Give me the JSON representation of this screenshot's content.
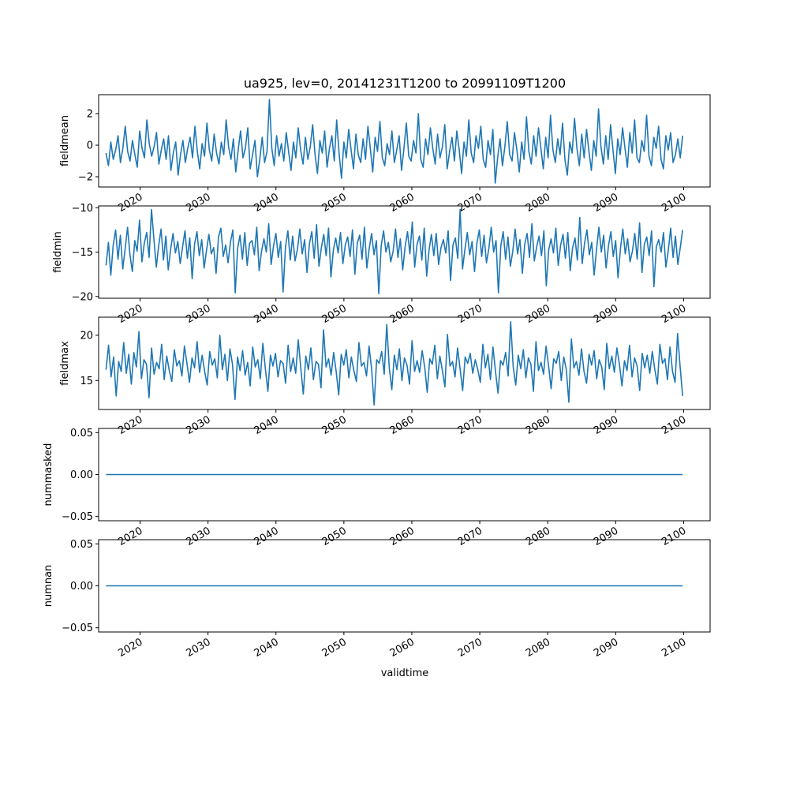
{
  "figure": {
    "title": "ua925, lev=0, 20141231T1200 to 20991109T1200",
    "xlabel": "validtime"
  },
  "colors": {
    "line": "#1f77b4",
    "axes": "#000000",
    "background": "#ffffff"
  },
  "chart_data": [
    {
      "type": "line",
      "title": "ua925, lev=0, 20141231T1200 to 20991109T1200",
      "ylabel": "fieldmean",
      "xlim": [
        2013.9,
        2103.9
      ],
      "ylim": [
        -2.65,
        3.2
      ],
      "yticks": [
        -2,
        0,
        2
      ],
      "ytick_labels": [
        "−2",
        "0",
        "2"
      ],
      "xticks": [
        2020,
        2030,
        2040,
        2050,
        2060,
        2070,
        2080,
        2090,
        2100
      ],
      "xtick_labels": [
        "2020",
        "2030",
        "2040",
        "2050",
        "2060",
        "2070",
        "2080",
        "2090",
        "2100"
      ],
      "series": [
        {
          "x_start": 2014.99,
          "x_end": 2099.86,
          "values": [
            -0.5,
            -1.3,
            0.2,
            -0.9,
            -0.3,
            0.6,
            -1.1,
            -0.2,
            1.2,
            -0.4,
            -1.0,
            0.3,
            -0.6,
            -1.4,
            0.9,
            -0.2,
            -0.8,
            1.6,
            0.1,
            -0.7,
            -0.1,
            0.8,
            -1.2,
            -0.3,
            0.4,
            -0.9,
            0.6,
            -1.6,
            -0.5,
            0.2,
            -1.9,
            -0.6,
            0.3,
            -1.1,
            -0.2,
            0.5,
            -0.8,
            1.2,
            -0.4,
            -1.5,
            0.1,
            -0.7,
            1.4,
            -0.3,
            -1.0,
            0.7,
            -0.5,
            -1.2,
            0.2,
            -0.6,
            1.6,
            -0.1,
            -0.9,
            0.4,
            -1.7,
            -0.3,
            0.9,
            -0.8,
            -0.2,
            1.1,
            -1.5,
            -0.6,
            0.3,
            -2.0,
            -0.9,
            0.5,
            -1.1,
            -0.4,
            2.9,
            -0.2,
            -1.3,
            0.6,
            -0.7,
            0.1,
            -1.0,
            0.8,
            -0.4,
            -1.6,
            0.2,
            -0.8,
            1.1,
            -0.3,
            -1.2,
            0.5,
            -0.9,
            -0.1,
            1.3,
            -0.6,
            -1.8,
            0.3,
            -0.5,
            0.9,
            -1.4,
            -0.2,
            0.6,
            -1.0,
            1.6,
            -0.5,
            -2.1,
            0.2,
            -0.8,
            1.0,
            -0.3,
            -1.5,
            0.7,
            -0.6,
            -1.1,
            0.4,
            -0.9,
            1.2,
            -0.2,
            -1.7,
            0.5,
            -0.4,
            1.5,
            -0.8,
            -1.3,
            0.1,
            -0.6,
            0.9,
            -1.1,
            -0.3,
            0.6,
            -1.6,
            -0.2,
            1.4,
            -0.7,
            -1.0,
            0.3,
            -0.5,
            2.0,
            -0.9,
            -1.4,
            0.4,
            -0.6,
            1.1,
            -0.2,
            -1.2,
            0.7,
            -0.8,
            -0.1,
            1.3,
            -1.5,
            -0.4,
            0.5,
            -1.0,
            0.9,
            -0.3,
            -1.8,
            0.2,
            -0.7,
            1.6,
            -0.5,
            -1.1,
            0.6,
            -0.2,
            1.2,
            -0.9,
            -1.4,
            0.3,
            -0.6,
            1.0,
            -2.4,
            -0.8,
            0.4,
            -1.3,
            -0.1,
            1.5,
            -0.6,
            -1.0,
            0.8,
            -0.3,
            -1.7,
            0.2,
            -0.9,
            1.8,
            -0.4,
            -1.2,
            0.6,
            -0.7,
            1.1,
            -0.2,
            -1.5,
            0.5,
            -0.8,
            1.9,
            -0.3,
            -1.1,
            0.4,
            -0.6,
            1.4,
            -0.9,
            -1.9,
            0.2,
            -0.5,
            1.7,
            -0.2,
            -1.3,
            0.7,
            -0.8,
            1.0,
            -0.4,
            -1.6,
            0.3,
            -0.7,
            2.3,
            -0.1,
            -1.2,
            0.6,
            -0.9,
            1.3,
            -0.3,
            -1.8,
            0.4,
            -0.6,
            1.1,
            -0.2,
            -1.4,
            0.8,
            -0.5,
            1.6,
            -0.8,
            -1.1,
            0.3,
            -0.4,
            1.9,
            -0.7,
            -1.3,
            0.5,
            -0.2,
            1.2,
            -0.9,
            -1.5,
            0.6,
            -0.3,
            0.8,
            -1.1,
            -0.6,
            0.4,
            -0.8,
            0.6
          ]
        }
      ]
    },
    {
      "type": "line",
      "ylabel": "fieldmin",
      "xlim": [
        2013.9,
        2103.9
      ],
      "ylim": [
        -20.2,
        -9.8
      ],
      "yticks": [
        -20,
        -15,
        -10
      ],
      "ytick_labels": [
        "−20",
        "−15",
        "−10"
      ],
      "xticks": [
        2020,
        2030,
        2040,
        2050,
        2060,
        2070,
        2080,
        2090,
        2100
      ],
      "xtick_labels": [
        "2020",
        "2030",
        "2040",
        "2050",
        "2060",
        "2070",
        "2080",
        "2090",
        "2100"
      ],
      "series": [
        {
          "x_start": 2014.99,
          "x_end": 2099.86,
          "values": [
            -16.5,
            -13.9,
            -17.6,
            -14.2,
            -12.5,
            -15.8,
            -13.1,
            -16.9,
            -14.6,
            -12.2,
            -15.3,
            -17.2,
            -13.7,
            -14.9,
            -11.4,
            -16.1,
            -14.0,
            -12.8,
            -15.6,
            -10.2,
            -13.5,
            -16.7,
            -14.3,
            -12.4,
            -15.9,
            -13.2,
            -17.0,
            -14.7,
            -12.9,
            -15.1,
            -13.8,
            -16.3,
            -14.4,
            -12.6,
            -15.7,
            -13.4,
            -18.0,
            -14.1,
            -12.7,
            -15.4,
            -13.6,
            -16.8,
            -14.8,
            -13.0,
            -15.2,
            -14.5,
            -17.4,
            -13.3,
            -12.3,
            -15.5,
            -14.2,
            -16.2,
            -13.9,
            -12.5,
            -19.6,
            -14.6,
            -13.1,
            -15.8,
            -12.8,
            -16.5,
            -14.0,
            -13.7,
            -15.3,
            -12.2,
            -17.1,
            -14.9,
            -13.5,
            -15.0,
            -11.8,
            -16.4,
            -14.3,
            -12.9,
            -15.6,
            -13.8,
            -19.5,
            -14.4,
            -12.6,
            -15.9,
            -13.2,
            -16.0,
            -14.7,
            -12.4,
            -15.2,
            -13.6,
            -17.3,
            -14.1,
            -12.7,
            -15.7,
            -11.9,
            -16.6,
            -14.5,
            -13.0,
            -15.4,
            -12.3,
            -17.8,
            -14.8,
            -13.4,
            -15.1,
            -12.8,
            -16.3,
            -14.2,
            -13.3,
            -15.5,
            -12.5,
            -17.5,
            -14.0,
            -13.1,
            -15.8,
            -12.2,
            -16.8,
            -14.6,
            -12.9,
            -15.3,
            -13.7,
            -19.7,
            -14.3,
            -12.6,
            -15.0,
            -13.9,
            -16.1,
            -14.9,
            -12.4,
            -15.6,
            -13.5,
            -17.0,
            -14.4,
            -12.7,
            -15.2,
            -11.6,
            -16.7,
            -14.1,
            -13.2,
            -15.9,
            -12.3,
            -17.7,
            -14.8,
            -13.0,
            -15.4,
            -12.9,
            -16.4,
            -14.5,
            -13.6,
            -15.1,
            -12.6,
            -18.2,
            -14.2,
            -13.4,
            -15.7,
            -10.2,
            -16.9,
            -14.7,
            -12.8,
            -15.3,
            -13.8,
            -17.2,
            -14.0,
            -12.5,
            -15.5,
            -13.1,
            -16.2,
            -14.6,
            -12.2,
            -15.0,
            -13.7,
            -19.6,
            -14.3,
            -12.7,
            -15.8,
            -13.3,
            -16.6,
            -14.9,
            -12.4,
            -15.2,
            -13.6,
            -17.4,
            -14.1,
            -12.9,
            -15.6,
            -11.8,
            -16.0,
            -14.4,
            -13.2,
            -15.4,
            -12.6,
            -18.8,
            -14.8,
            -13.5,
            -15.1,
            -12.3,
            -16.5,
            -14.2,
            -13.0,
            -15.7,
            -12.8,
            -17.1,
            -14.5,
            -13.4,
            -15.9,
            -11.1,
            -16.3,
            -14.0,
            -12.5,
            -15.3,
            -13.9,
            -17.6,
            -14.7,
            -12.2,
            -15.0,
            -13.1,
            -16.8,
            -14.3,
            -12.7,
            -15.5,
            -13.7,
            -17.9,
            -14.6,
            -12.4,
            -15.2,
            -13.5,
            -16.1,
            -14.9,
            -12.9,
            -15.8,
            -11.7,
            -17.3,
            -14.1,
            -13.3,
            -15.4,
            -12.6,
            -18.9,
            -14.4,
            -13.6,
            -15.0,
            -12.8,
            -16.7,
            -14.8,
            -12.3,
            -15.6,
            -13.2,
            -16.4,
            -14.5,
            -12.5
          ]
        }
      ]
    },
    {
      "type": "line",
      "ylabel": "fieldmax",
      "xlim": [
        2013.9,
        2103.9
      ],
      "ylim": [
        11.8,
        22.0
      ],
      "yticks": [
        15,
        20
      ],
      "ytick_labels": [
        "15",
        "20"
      ],
      "xticks": [
        2020,
        2030,
        2040,
        2050,
        2060,
        2070,
        2080,
        2090,
        2100
      ],
      "xtick_labels": [
        "2020",
        "2030",
        "2040",
        "2050",
        "2060",
        "2070",
        "2080",
        "2090",
        "2100"
      ],
      "series": [
        {
          "x_start": 2014.99,
          "x_end": 2099.86,
          "values": [
            16.2,
            18.9,
            15.4,
            17.6,
            13.3,
            17.1,
            16.0,
            19.2,
            15.8,
            17.9,
            14.6,
            18.1,
            16.5,
            20.4,
            15.2,
            17.3,
            16.8,
            13.1,
            18.6,
            15.7,
            17.0,
            16.3,
            19.0,
            15.1,
            17.7,
            16.1,
            14.9,
            18.4,
            16.6,
            17.2,
            15.5,
            18.8,
            16.9,
            14.8,
            17.5,
            16.4,
            19.3,
            15.9,
            17.8,
            16.0,
            14.5,
            18.2,
            16.7,
            17.4,
            15.3,
            20.0,
            16.2,
            17.9,
            15.0,
            18.5,
            16.8,
            12.9,
            17.6,
            16.1,
            18.3,
            15.6,
            17.0,
            14.4,
            18.7,
            16.5,
            17.3,
            15.2,
            19.1,
            16.3,
            13.8,
            17.8,
            16.6,
            18.0,
            15.4,
            17.2,
            16.9,
            14.7,
            18.9,
            16.0,
            17.5,
            15.8,
            19.5,
            16.4,
            13.5,
            17.7,
            16.2,
            18.6,
            15.1,
            17.1,
            16.8,
            14.2,
            20.6,
            16.5,
            17.4,
            15.6,
            18.1,
            16.0,
            13.4,
            17.9,
            16.7,
            18.4,
            15.3,
            17.6,
            16.1,
            14.9,
            19.2,
            16.6,
            17.0,
            15.5,
            18.8,
            16.3,
            12.3,
            17.3,
            16.9,
            18.2,
            15.7,
            21.2,
            16.4,
            14.0,
            17.8,
            16.2,
            18.5,
            15.0,
            17.5,
            16.7,
            14.6,
            19.4,
            16.0,
            17.2,
            15.9,
            18.3,
            16.5,
            13.7,
            17.4,
            16.8,
            18.9,
            15.2,
            17.7,
            16.1,
            14.3,
            20.1,
            16.6,
            17.1,
            15.4,
            18.6,
            16.3,
            13.9,
            17.6,
            16.9,
            18.0,
            15.8,
            17.3,
            16.2,
            14.8,
            19.0,
            16.4,
            17.9,
            15.1,
            18.7,
            16.0,
            13.6,
            17.2,
            16.7,
            18.1,
            15.5,
            21.5,
            16.5,
            14.5,
            17.8,
            16.3,
            18.4,
            15.3,
            17.5,
            16.8,
            13.8,
            19.3,
            16.1,
            17.0,
            15.7,
            18.8,
            16.6,
            14.1,
            17.4,
            16.9,
            18.2,
            15.0,
            17.6,
            16.2,
            12.6,
            19.6,
            16.4,
            17.1,
            15.6,
            18.5,
            16.0,
            14.7,
            17.9,
            16.7,
            18.3,
            15.2,
            17.3,
            16.5,
            14.0,
            19.1,
            16.3,
            17.7,
            15.9,
            18.6,
            16.8,
            14.4,
            17.2,
            16.1,
            18.9,
            15.4,
            17.5,
            16.6,
            13.9,
            18.0,
            16.4,
            17.8,
            15.8,
            18.2,
            16.2,
            14.6,
            19.0,
            16.9,
            17.4,
            15.1,
            18.7,
            16.0,
            14.8,
            20.2,
            16.5,
            13.3
          ]
        }
      ]
    },
    {
      "type": "line",
      "ylabel": "nummasked",
      "xlim": [
        2013.9,
        2103.9
      ],
      "ylim": [
        -0.055,
        0.055
      ],
      "yticks": [
        -0.05,
        0.0,
        0.05
      ],
      "ytick_labels": [
        "−0.05",
        "0.00",
        "0.05"
      ],
      "xticks": [
        2020,
        2030,
        2040,
        2050,
        2060,
        2070,
        2080,
        2090,
        2100
      ],
      "xtick_labels": [
        "2020",
        "2030",
        "2040",
        "2050",
        "2060",
        "2070",
        "2080",
        "2090",
        "2100"
      ],
      "series": [
        {
          "x_start": 2014.99,
          "x_end": 2099.86,
          "values": [
            0,
            0
          ]
        }
      ]
    },
    {
      "type": "line",
      "ylabel": "numnan",
      "xlabel": "validtime",
      "xlim": [
        2013.9,
        2103.9
      ],
      "ylim": [
        -0.055,
        0.055
      ],
      "yticks": [
        -0.05,
        0.0,
        0.05
      ],
      "ytick_labels": [
        "−0.05",
        "0.00",
        "0.05"
      ],
      "xticks": [
        2020,
        2030,
        2040,
        2050,
        2060,
        2070,
        2080,
        2090,
        2100
      ],
      "xtick_labels": [
        "2020",
        "2030",
        "2040",
        "2050",
        "2060",
        "2070",
        "2080",
        "2090",
        "2100"
      ],
      "series": [
        {
          "x_start": 2014.99,
          "x_end": 2099.86,
          "values": [
            0,
            0
          ]
        }
      ]
    }
  ]
}
